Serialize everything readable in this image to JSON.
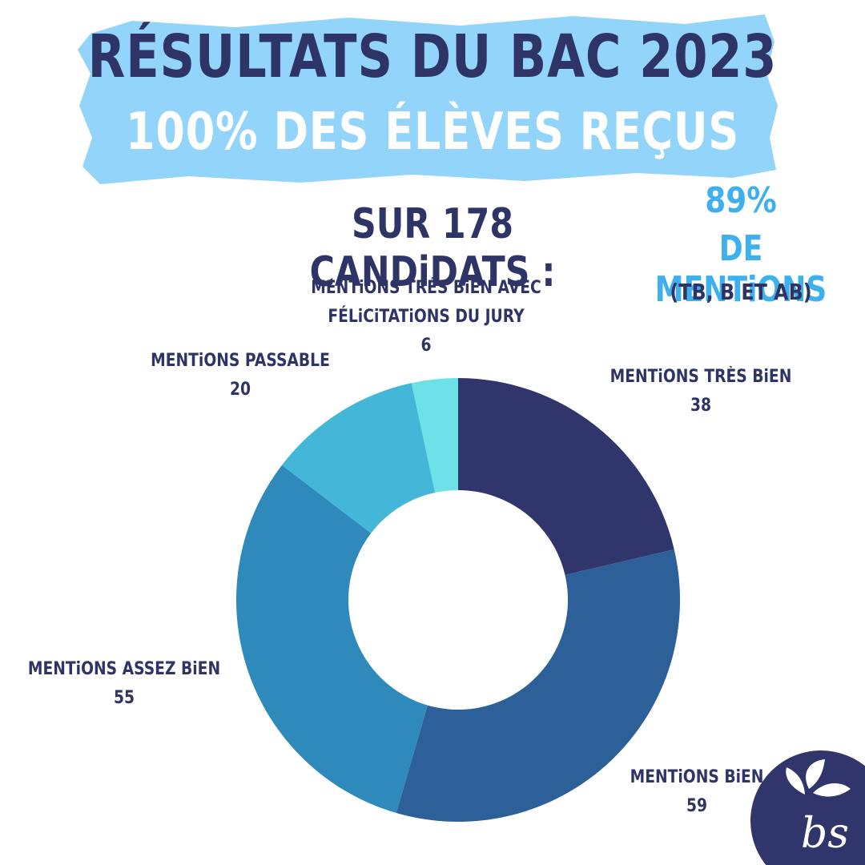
{
  "header": {
    "title": "RÉSULTATS DU BAC 2023",
    "subtitle": "100% DES ÉLÈVES REÇUS"
  },
  "summary": {
    "total_text": "SUR 178 CANDiDATS :",
    "mentions_share": "89%",
    "mentions_label": "DE MENTiONS",
    "mentions_note": "(TB, B ET AB)"
  },
  "colors": {
    "banner": "#93d4fb",
    "dark_text": "#2e3566",
    "accent": "#3fb0ee"
  },
  "chart_data": {
    "type": "pie",
    "donut": true,
    "total": 178,
    "slices": [
      {
        "label_lines": [
          "MENTiONS TRÈS BiEN"
        ],
        "value": 38,
        "color": "#30356b"
      },
      {
        "label_lines": [
          "MENTiONS BiEN"
        ],
        "value": 59,
        "color": "#2d6099"
      },
      {
        "label_lines": [
          "MENTiONS ASSEZ BiEN"
        ],
        "value": 55,
        "color": "#2e8aba"
      },
      {
        "label_lines": [
          "MENTiONS PASSABLE"
        ],
        "value": 20,
        "color": "#44b6d8"
      },
      {
        "label_lines": [
          "MENTiONS TRÉS BiEN AVEC",
          "FÉLiCiTATiONS DU JURY"
        ],
        "value": 6,
        "color": "#6ce2e8"
      }
    ]
  },
  "logo": {
    "text": "bs",
    "color": "#30356b"
  }
}
